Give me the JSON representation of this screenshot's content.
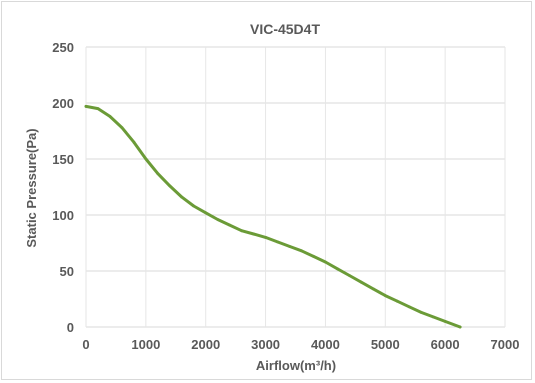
{
  "chart_data": {
    "type": "line",
    "title": "VIC-45D4T",
    "xlabel": "Airflow(m³/h)",
    "ylabel": "Static Pressure(Pa)",
    "xlim": [
      0,
      7000
    ],
    "ylim": [
      0,
      250
    ],
    "xticks": [
      "0",
      "1000",
      "2000",
      "3000",
      "4000",
      "5000",
      "6000",
      "7000"
    ],
    "yticks": [
      "0",
      "50",
      "100",
      "150",
      "200",
      "250"
    ],
    "grid": true,
    "legend": "none",
    "series": [
      {
        "color": "#6b9b37",
        "points": [
          [
            0,
            197
          ],
          [
            200,
            195
          ],
          [
            400,
            188
          ],
          [
            600,
            178
          ],
          [
            800,
            165
          ],
          [
            1000,
            150
          ],
          [
            1200,
            137
          ],
          [
            1400,
            126
          ],
          [
            1600,
            116
          ],
          [
            1800,
            108
          ],
          [
            2000,
            102
          ],
          [
            2200,
            96
          ],
          [
            2400,
            91
          ],
          [
            2600,
            86
          ],
          [
            2800,
            83
          ],
          [
            3000,
            80
          ],
          [
            3200,
            76
          ],
          [
            3400,
            72
          ],
          [
            3600,
            68
          ],
          [
            3800,
            63
          ],
          [
            4000,
            58
          ],
          [
            4200,
            52
          ],
          [
            4400,
            46
          ],
          [
            4600,
            40
          ],
          [
            4800,
            34
          ],
          [
            5000,
            28
          ],
          [
            5200,
            23
          ],
          [
            5400,
            18
          ],
          [
            5600,
            13
          ],
          [
            5800,
            9
          ],
          [
            6000,
            5
          ],
          [
            6250,
            0
          ]
        ]
      }
    ]
  }
}
